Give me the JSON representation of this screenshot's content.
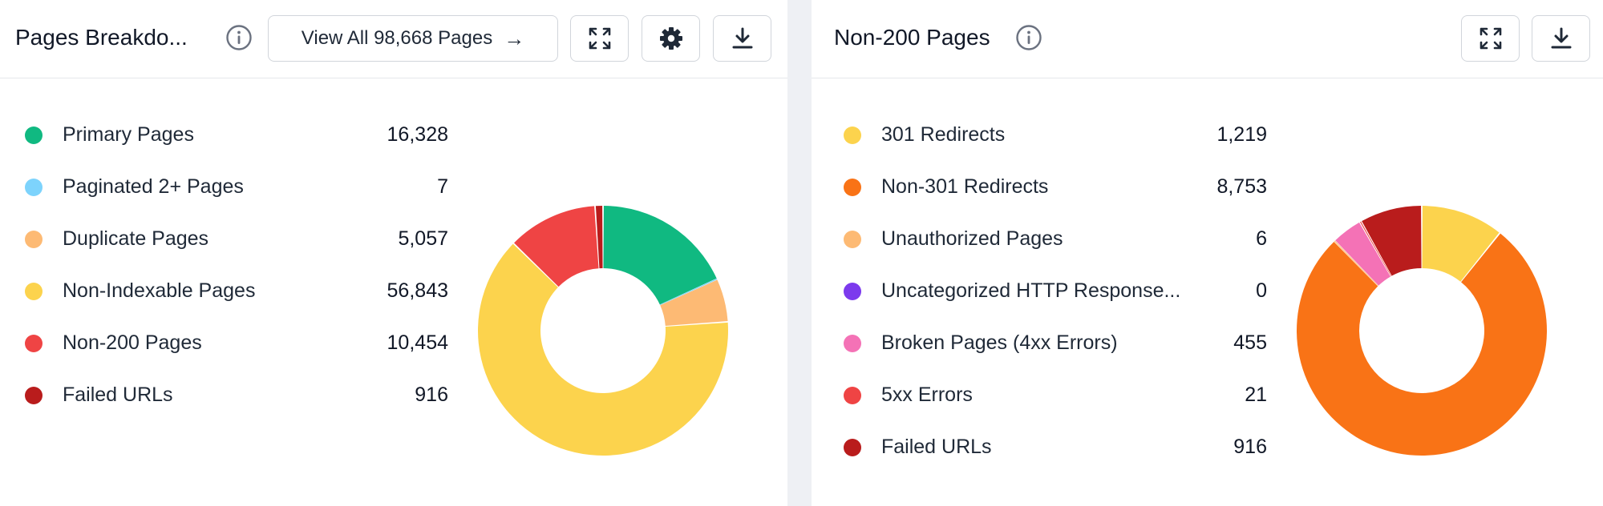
{
  "panels": {
    "pages_breakdown": {
      "title": "Pages Breakdo...",
      "info_icon": "info-icon",
      "view_all_label": "View All 98,668 Pages",
      "view_all_arrow": "→",
      "icons": {
        "expand": "expand-icon",
        "settings": "gear-icon",
        "download": "download-icon"
      }
    },
    "non_200": {
      "title": "Non-200 Pages",
      "info_icon": "info-icon",
      "icons": {
        "expand": "expand-icon",
        "download": "download-icon"
      }
    }
  },
  "chart_data": [
    {
      "type": "pie",
      "donut": true,
      "title": "Pages Breakdo...",
      "legend_position": "left",
      "categories": [
        "Primary Pages",
        "Paginated 2+ Pages",
        "Duplicate Pages",
        "Non-Indexable Pages",
        "Non-200 Pages",
        "Failed URLs"
      ],
      "values": [
        16328,
        7,
        5057,
        56843,
        10454,
        916
      ],
      "value_labels": [
        "16,328",
        "7",
        "5,057",
        "56,843",
        "10,454",
        "916"
      ],
      "colors": [
        "#10b981",
        "#7dd3fc",
        "#fdba74",
        "#fcd34d",
        "#ef4444",
        "#b91c1c"
      ]
    },
    {
      "type": "pie",
      "donut": true,
      "title": "Non-200 Pages",
      "legend_position": "left",
      "categories": [
        "301 Redirects",
        "Non-301 Redirects",
        "Unauthorized Pages",
        "Uncategorized HTTP Response...",
        "Broken Pages (4xx Errors)",
        "5xx Errors",
        "Failed URLs"
      ],
      "values": [
        1219,
        8753,
        6,
        0,
        455,
        21,
        916
      ],
      "value_labels": [
        "1,219",
        "8,753",
        "6",
        "0",
        "455",
        "21",
        "916"
      ],
      "colors": [
        "#fcd34d",
        "#f97316",
        "#fdba74",
        "#7c3aed",
        "#f472b6",
        "#ef4444",
        "#b91c1c"
      ]
    }
  ]
}
